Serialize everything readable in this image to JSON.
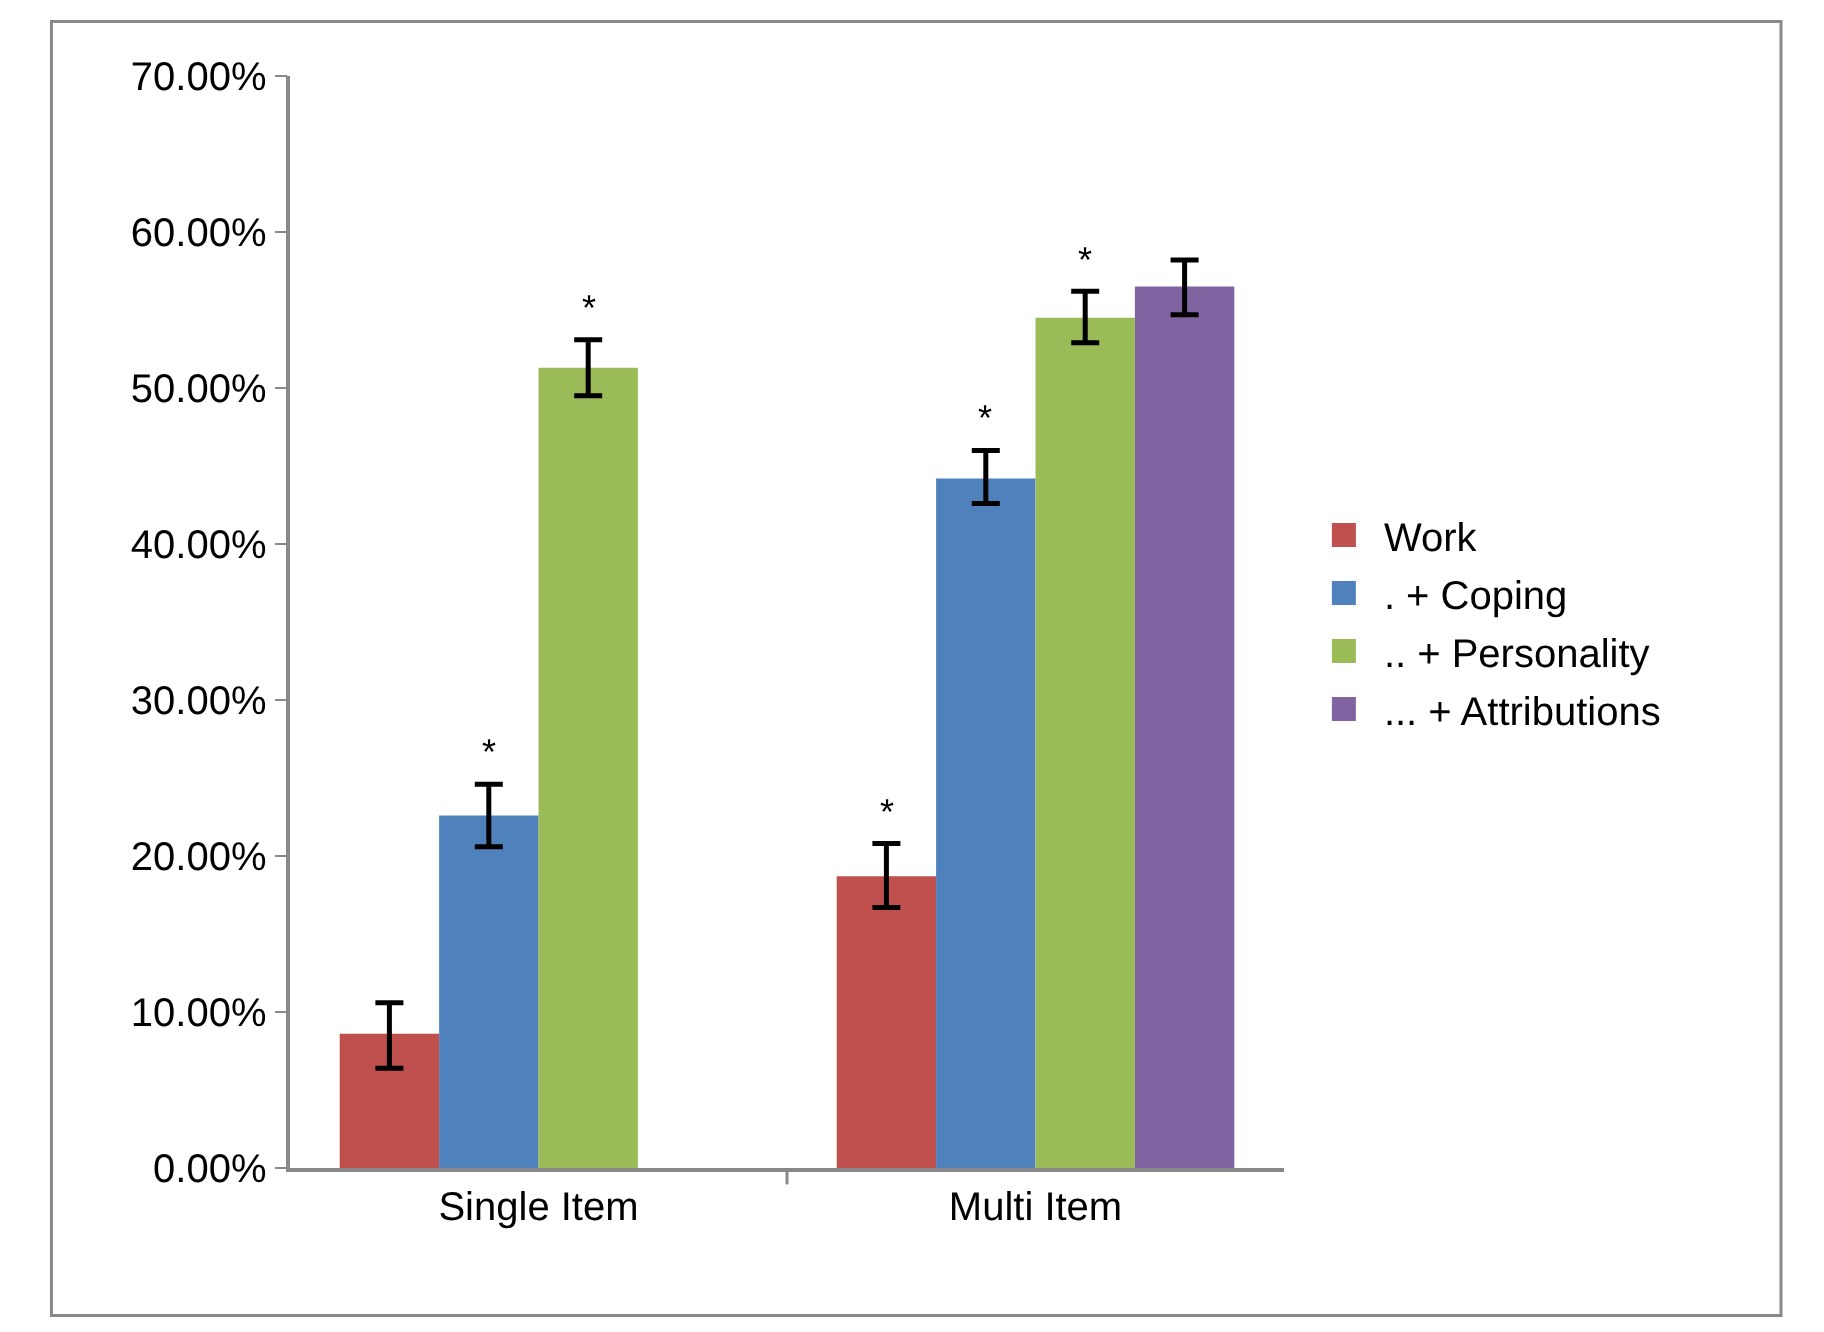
{
  "chart_data": {
    "type": "bar",
    "categories": [
      "Single Item",
      "Multi Item"
    ],
    "series": [
      {
        "name": "Work",
        "color": "#c0504d",
        "values": [
          8.6,
          18.7
        ],
        "errors": [
          [
            6.4,
            10.6
          ],
          [
            16.7,
            20.8
          ]
        ],
        "value_labels": [
          null,
          "*"
        ]
      },
      {
        "name": ". + Coping",
        "color": "#4f81bd",
        "values": [
          22.6,
          44.2
        ],
        "errors": [
          [
            20.6,
            24.6
          ],
          [
            42.6,
            46.0
          ]
        ],
        "value_labels": [
          "*",
          "*"
        ]
      },
      {
        "name": ".. + Personality",
        "color": "#9bbb59",
        "values": [
          51.3,
          54.5
        ],
        "errors": [
          [
            49.5,
            53.1
          ],
          [
            52.9,
            56.2
          ]
        ],
        "value_labels": [
          "*",
          "*"
        ]
      },
      {
        "name": "... + Attributions",
        "color": "#8064a2",
        "values": [
          null,
          56.5
        ],
        "errors": [
          null,
          [
            54.7,
            58.2
          ]
        ],
        "value_labels": [
          null,
          null
        ]
      }
    ],
    "ylim": [
      0,
      70
    ],
    "yticks": [
      {
        "value": 0,
        "label": "0.00%"
      },
      {
        "value": 10,
        "label": "10.00%"
      },
      {
        "value": 20,
        "label": "20.00%"
      },
      {
        "value": 30,
        "label": "30.00%"
      },
      {
        "value": 40,
        "label": "40.00%"
      },
      {
        "value": 50,
        "label": "50.00%"
      },
      {
        "value": 60,
        "label": "60.00%"
      },
      {
        "value": 70,
        "label": "70.00%"
      }
    ],
    "grid": false,
    "legend": "right"
  }
}
